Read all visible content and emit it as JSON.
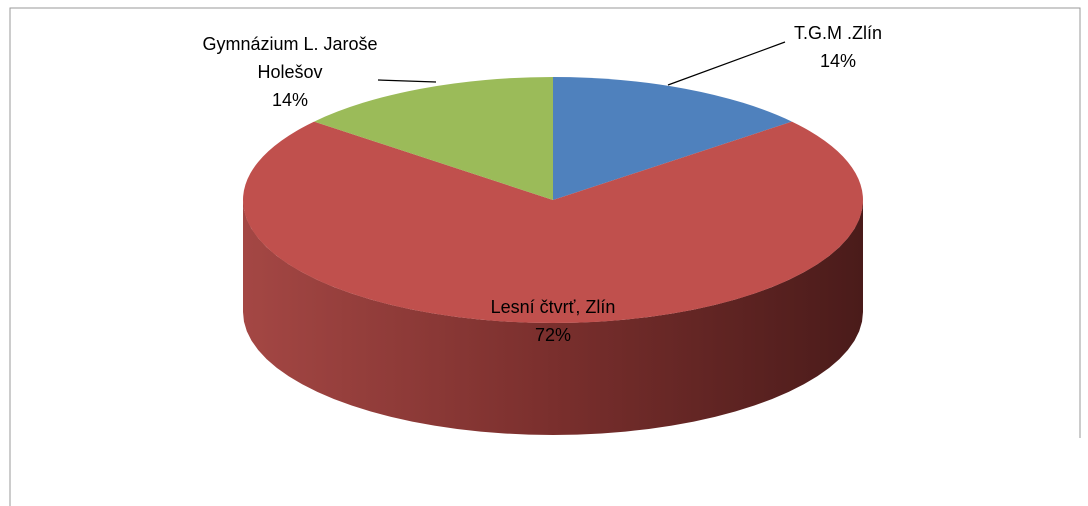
{
  "chart_data": {
    "type": "pie",
    "categories": [
      "T.G.M .Zlín",
      "Lesní čtvrť, Zlín",
      "Gymnázium L. Jaroše Holešov"
    ],
    "values": [
      14,
      72,
      14
    ],
    "value_labels": [
      "14%",
      "72%",
      "14%"
    ],
    "colors": [
      "#4f81bd",
      "#c0504d",
      "#9bbb59"
    ],
    "style": "3d"
  }
}
